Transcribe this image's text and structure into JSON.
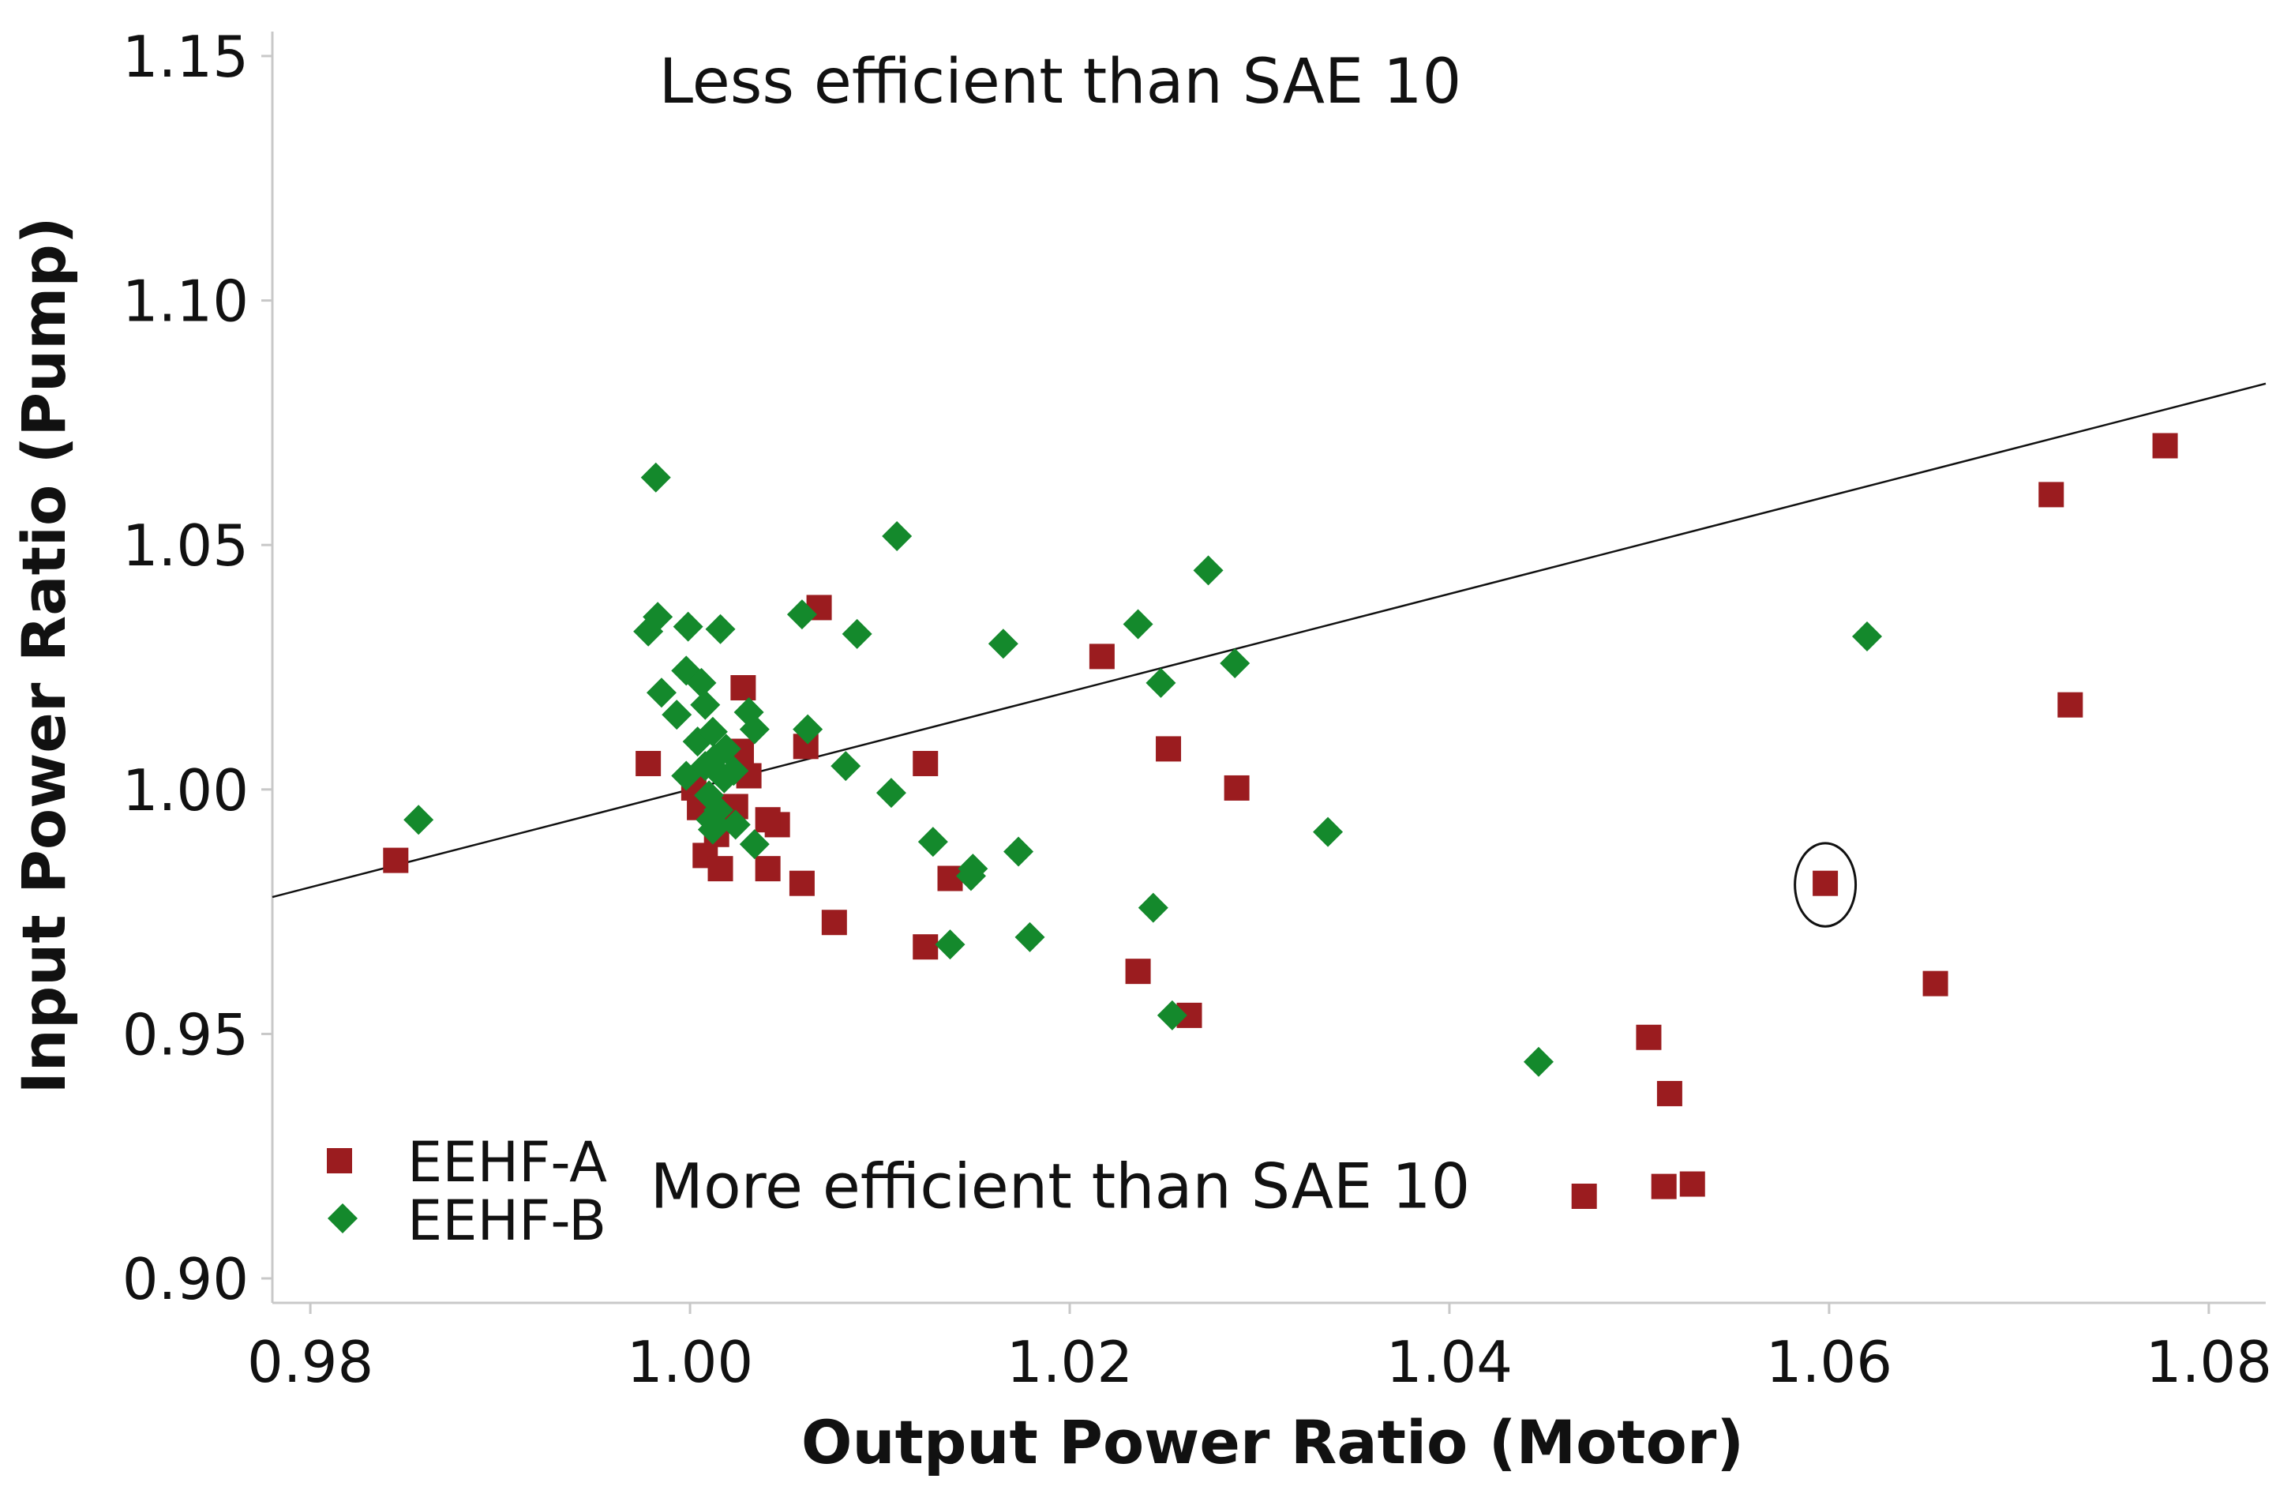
{
  "chart_data": {
    "type": "scatter",
    "xlabel": "Output Power Ratio (Motor)",
    "ylabel": "Input Power Ratio (Pump)",
    "xlim": [
      0.978,
      1.083
    ],
    "ylim": [
      0.895,
      1.155
    ],
    "x_ticks": [
      0.98,
      1.0,
      1.02,
      1.04,
      1.06,
      1.08
    ],
    "x_tick_labels": [
      "0.98",
      "1.00",
      "1.02",
      "1.04",
      "1.06",
      "1.08"
    ],
    "y_ticks": [
      0.9,
      0.95,
      1.0,
      1.05,
      1.1,
      1.15
    ],
    "y_tick_labels": [
      "0.90",
      "0.95",
      "1.00",
      "1.05",
      "1.10",
      "1.15"
    ],
    "grid": false,
    "legend_position": "bottom-left",
    "annotations": [
      {
        "text": "Less efficient than SAE 10",
        "x": 1.0195,
        "y": 1.1405
      },
      {
        "text": "More efficient than SAE 10",
        "x": 1.0195,
        "y": 0.9145
      }
    ],
    "reference_line": {
      "x1": 0.978,
      "y1": 0.978,
      "x2": 1.083,
      "y2": 1.083,
      "color": "#111111"
    },
    "highlight": {
      "x": 1.0598,
      "y": 0.9805,
      "rx": 0.0016,
      "ry": 0.0085
    },
    "series": [
      {
        "name": "EEHF-A",
        "marker": "square",
        "color": "#9b1c1f",
        "points": [
          [
            0.9845,
            0.9855
          ],
          [
            0.9978,
            1.0053
          ],
          [
            1.0002,
            1.0003
          ],
          [
            1.0005,
            0.9963
          ],
          [
            1.0008,
            0.9865
          ],
          [
            1.0011,
            0.9965
          ],
          [
            1.0014,
            0.9908
          ],
          [
            1.0016,
            0.9838
          ],
          [
            1.0019,
            0.9938
          ],
          [
            1.0024,
            0.9965
          ],
          [
            1.0027,
            1.0078
          ],
          [
            1.0028,
            1.0208
          ],
          [
            1.0031,
            1.0028
          ],
          [
            1.0041,
            0.9838
          ],
          [
            1.0046,
            0.9928
          ],
          [
            1.0041,
            0.9938
          ],
          [
            1.0059,
            0.9808
          ],
          [
            1.0061,
            1.0088
          ],
          [
            1.0068,
            1.0372
          ],
          [
            1.0076,
            0.9728
          ],
          [
            1.0124,
            1.0053
          ],
          [
            1.0124,
            0.9678
          ],
          [
            1.0137,
            0.9818
          ],
          [
            1.0217,
            1.0272
          ],
          [
            1.0236,
            0.9628
          ],
          [
            1.0252,
            1.0083
          ],
          [
            1.0263,
            0.9538
          ],
          [
            1.0288,
            1.0003
          ],
          [
            1.0471,
            0.9168
          ],
          [
            1.0505,
            0.9493
          ],
          [
            1.0513,
            0.9188
          ],
          [
            1.0516,
            0.9378
          ],
          [
            1.0528,
            0.9193
          ],
          [
            1.0598,
            0.9808
          ],
          [
            1.0656,
            0.9603
          ],
          [
            1.0717,
            1.0603
          ],
          [
            1.0727,
            1.0173
          ],
          [
            1.0777,
            1.0703
          ]
        ]
      },
      {
        "name": "EEHF-B",
        "marker": "diamond",
        "color": "#14892c",
        "points": [
          [
            0.9857,
            0.9938
          ],
          [
            0.9982,
            1.0638
          ],
          [
            0.9978,
            1.0323
          ],
          [
            0.9983,
            1.0353
          ],
          [
            0.9985,
            1.0198
          ],
          [
            0.9993,
            1.0153
          ],
          [
            0.9998,
            1.0243
          ],
          [
            0.9998,
            1.0028
          ],
          [
            0.9999,
            1.0333
          ],
          [
            1.0004,
            1.0098
          ],
          [
            1.0006,
            1.0218
          ],
          [
            1.0008,
            1.0173
          ],
          [
            1.0008,
            1.0048
          ],
          [
            1.001,
            0.9988
          ],
          [
            1.0011,
            0.9938
          ],
          [
            1.0012,
            0.9918
          ],
          [
            1.0012,
            1.0118
          ],
          [
            1.0013,
            1.0063
          ],
          [
            1.0014,
            1.0038
          ],
          [
            1.0015,
            0.9958
          ],
          [
            1.0016,
            1.0328
          ],
          [
            1.0018,
            1.0023
          ],
          [
            1.0019,
            1.0083
          ],
          [
            1.0023,
            1.0038
          ],
          [
            1.0024,
            0.9928
          ],
          [
            1.0031,
            1.0158
          ],
          [
            1.0034,
            1.0123
          ],
          [
            1.0034,
            0.9888
          ],
          [
            1.0059,
            1.0358
          ],
          [
            1.0062,
            1.0123
          ],
          [
            1.0082,
            1.0048
          ],
          [
            1.0088,
            1.0318
          ],
          [
            1.0106,
            0.9993
          ],
          [
            1.0109,
            1.0518
          ],
          [
            1.0128,
            0.9893
          ],
          [
            1.0137,
            0.9683
          ],
          [
            1.0148,
            0.9823
          ],
          [
            1.0149,
            0.9838
          ],
          [
            1.0165,
            1.0298
          ],
          [
            1.0173,
            0.9873
          ],
          [
            1.0179,
            0.9698
          ],
          [
            1.0236,
            1.0338
          ],
          [
            1.0244,
            0.9758
          ],
          [
            1.0248,
            1.0218
          ],
          [
            1.0254,
            0.9538
          ],
          [
            1.0273,
            1.0448
          ],
          [
            1.0287,
            1.0258
          ],
          [
            1.0336,
            0.9913
          ],
          [
            1.0447,
            0.9443
          ],
          [
            1.062,
            1.0313
          ]
        ]
      }
    ]
  }
}
